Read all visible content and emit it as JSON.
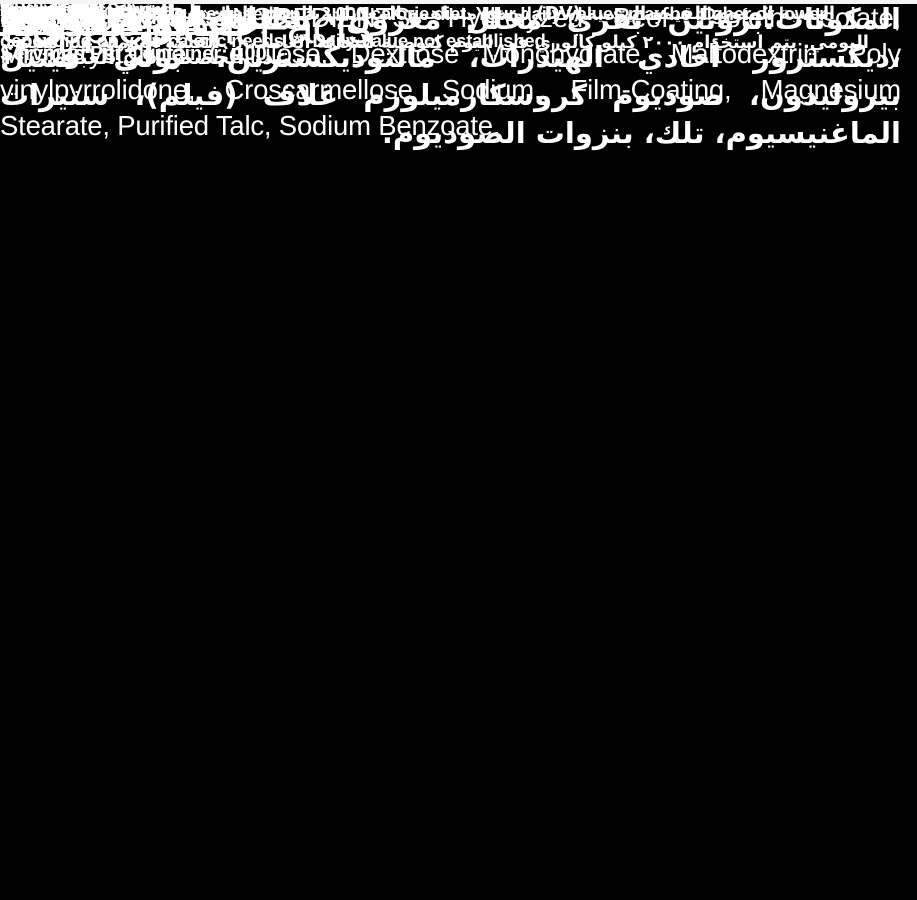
{
  "label": {
    "title_en": "Supplement Facts",
    "title_ar": "حقائق تغذوية",
    "serving": {
      "size_en": "Serving Size: 3 Tablets",
      "per_container_en": "Servings Per Container: 100",
      "size_ar": "حجم الحصة: ٣ أقراص",
      "per_container_ar": "عدد الحصص في العبوة: ١٠٠"
    },
    "table": {
      "header": {
        "amount_en": "Amount Per Serving",
        "amount_ar": "القيمة لكل حصة",
        "dv_en": "%Daily Value*",
        "dv_ar": "*القيمة اليومية٪"
      },
      "rows": [
        {
          "name_en": "Calories (Kcal)",
          "name_ar": "طــاقة (كيلو كالوري)",
          "amount_en": "15",
          "amount_ar": "١٥",
          "dv": ""
        },
        {
          "name_en": "Protein",
          "name_ar": "بروتين",
          "amount_en": "3g",
          "amount_ar": "٣ جم",
          "dv": "6%"
        },
        {
          "name_en": "Sodium",
          "name_ar": "صوديوم",
          "amount_en": "15mg",
          "amount_ar": "١٥مجم",
          "dv": "1%"
        }
      ]
    },
    "footnote_en": "*Percent Daily Values are based on a 2,000 calorie diet. Your daily values may be higher or lower depending on your caloric needs. ** Daily Value not established.",
    "footnote_ar": "٠ النسبة المئوية للقيمة اليومية (DV) توضح مساهمة المغذيات بالحصة الواحدة في النظام الغذائي اليومي. يتم استخدام ٢٠٠٠ كيلو كالوري في اليوم كتوصية للتغذية العامة. ٠٠ القيمة اليومية غير مثبتة.",
    "ingredients": {
      "heading_en": "INGREDIENTS:",
      "body_en": "INGREDIENTS: Hydrolyzed Beef Protein Isolate, Microcrystalline Cellulose, Dextrose Monohydrate, Maltodextrin, Poly vinylpyrrolidone, Croscarmellose Sodium, Film-Coating, Magnesium Stearate, Purified Talc, Sodium Benzoate.",
      "body_ar": "المكونات:بروتين بقري محلل معزول، سليلوز دقيق التبلور ،ديكستروز أحادي الهيدرات، مالتوديكسترين، بولي فينيل بيروليدون، صوديوم كروسكارميلوزم غلاف (فيلم)، ستيرات الماغنيسيوم، تلك، بنزوات الصوديوم."
    },
    "colors": {
      "background": "#000000",
      "text": "#ffffff",
      "divider": "#ffffff",
      "hairline": "#b3b3b3"
    }
  }
}
